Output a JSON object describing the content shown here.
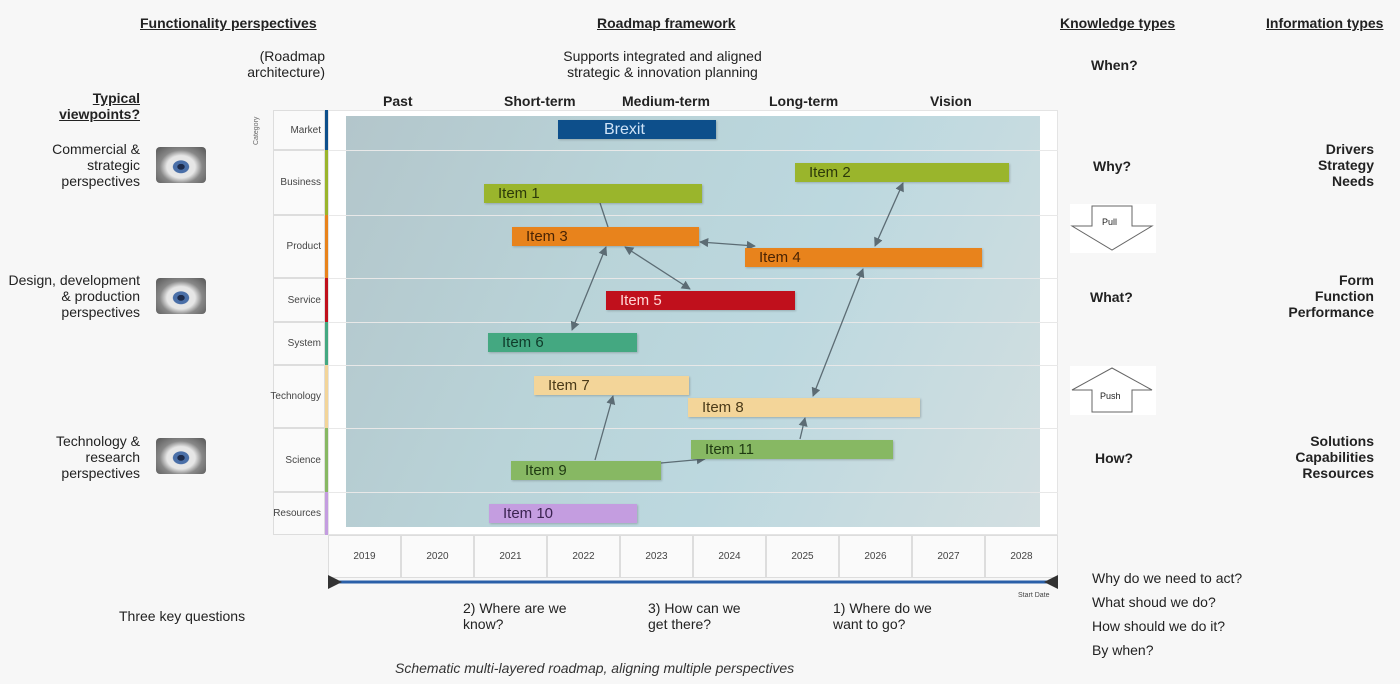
{
  "headers": {
    "functionality": "Functionality perspectives",
    "framework": "Roadmap framework",
    "knowledge": "Knowledge types",
    "information": "Information types"
  },
  "architecture": "(Roadmap\narchitecture)",
  "supports": "Supports integrated and aligned strategic & innovation planning",
  "typical": "Typical viewpoints?",
  "viewpoints": [
    "Commercial & strategic perspectives",
    "Design, development & production perspectives",
    "Technology & research perspectives"
  ],
  "phases": [
    "Past",
    "Short-term",
    "Medium-term",
    "Long-term",
    "Vision"
  ],
  "category_axis": "Category",
  "categories": [
    {
      "label": "Market",
      "color": "#0d4f8b"
    },
    {
      "label": "Business",
      "color": "#9ab52c"
    },
    {
      "label": "Product",
      "color": "#e8831c"
    },
    {
      "label": "Service",
      "color": "#c0101c"
    },
    {
      "label": "System",
      "color": "#44a881"
    },
    {
      "label": "Technology",
      "color": "#f3d599"
    },
    {
      "label": "Science",
      "color": "#87b863"
    },
    {
      "label": "Resources",
      "color": "#c49de0"
    }
  ],
  "items": [
    {
      "label": "Brexit",
      "category": "Market",
      "color": "#0d4f8b",
      "text": "#cfe3f7"
    },
    {
      "label": "Item 1",
      "category": "Business",
      "color": "#9ab52c",
      "text": "#2d3a0a"
    },
    {
      "label": "Item 2",
      "category": "Business",
      "color": "#9ab52c",
      "text": "#2d3a0a"
    },
    {
      "label": "Item 3",
      "category": "Product",
      "color": "#e8831c",
      "text": "#4a2404"
    },
    {
      "label": "Item 4",
      "category": "Product",
      "color": "#e8831c",
      "text": "#4a2404"
    },
    {
      "label": "Item 5",
      "category": "Service",
      "color": "#c0101c",
      "text": "#ffd6d6"
    },
    {
      "label": "Item 6",
      "category": "System",
      "color": "#44a881",
      "text": "#0f3b2a"
    },
    {
      "label": "Item 7",
      "category": "Technology",
      "color": "#f3d599",
      "text": "#4a3a18"
    },
    {
      "label": "Item 8",
      "category": "Technology",
      "color": "#f3d599",
      "text": "#4a3a18"
    },
    {
      "label": "Item 9",
      "category": "Science",
      "color": "#87b863",
      "text": "#1f3a12"
    },
    {
      "label": "Item 11",
      "category": "Science",
      "color": "#87b863",
      "text": "#1f3a12"
    },
    {
      "label": "Item 10",
      "category": "Resources",
      "color": "#c49de0",
      "text": "#3a2350"
    }
  ],
  "years": [
    "2019",
    "2020",
    "2021",
    "2022",
    "2023",
    "2024",
    "2025",
    "2026",
    "2027",
    "2028"
  ],
  "timeline_label": "Start Date",
  "questions_label": "Three key questions",
  "questions": [
    "2) Where are we know?",
    "3) How can we get there?",
    "1) Where do we want to go?"
  ],
  "caption": "Schematic multi-layered roadmap, aligning multiple perspectives",
  "knowledge": [
    "When?",
    "Why?",
    "What?",
    "How?"
  ],
  "pull": "Pull",
  "push": "Push",
  "information": [
    "Drivers\nStrategy\nNeeds",
    "Form\nFunction\nPerformance",
    "Solutions\nCapabilities\nResources"
  ],
  "act_questions": [
    "Why do we need to act?",
    "What shoud we do?",
    "How should we do it?",
    "By when?"
  ]
}
